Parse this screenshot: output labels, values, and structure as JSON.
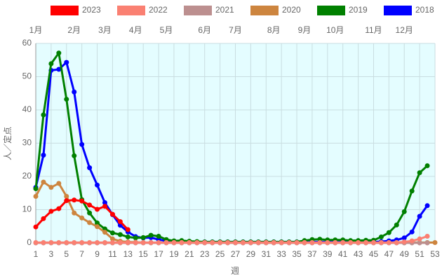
{
  "chart_data": {
    "type": "line",
    "y_label": "人／定点",
    "x_label": "週",
    "x": [
      1,
      2,
      3,
      4,
      5,
      6,
      7,
      8,
      9,
      10,
      11,
      12,
      13,
      14,
      15,
      16,
      17,
      18,
      19,
      20,
      21,
      22,
      23,
      24,
      25,
      26,
      27,
      28,
      29,
      30,
      31,
      32,
      33,
      34,
      35,
      36,
      37,
      38,
      39,
      40,
      41,
      42,
      43,
      44,
      45,
      46,
      47,
      48,
      49,
      50,
      51,
      52,
      53
    ],
    "xlim": [
      1,
      53
    ],
    "xticks": [
      1,
      3,
      5,
      7,
      9,
      11,
      13,
      15,
      17,
      19,
      21,
      23,
      25,
      27,
      29,
      31,
      33,
      35,
      37,
      39,
      41,
      43,
      45,
      47,
      49,
      51,
      53
    ],
    "x2ticks": [
      {
        "value": 1,
        "label": "1月"
      },
      {
        "value": 6,
        "label": "2月"
      },
      {
        "value": 10,
        "label": "3月"
      },
      {
        "value": 14,
        "label": "4月"
      },
      {
        "value": 18,
        "label": "5月"
      },
      {
        "value": 23,
        "label": "6月"
      },
      {
        "value": 27,
        "label": "7月"
      },
      {
        "value": 32,
        "label": "8月"
      },
      {
        "value": 36,
        "label": "9月"
      },
      {
        "value": 40,
        "label": "10月"
      },
      {
        "value": 45,
        "label": "11月"
      },
      {
        "value": 49,
        "label": "12月"
      }
    ],
    "ylim": [
      0,
      60
    ],
    "yticks": [
      0,
      10,
      20,
      30,
      40,
      50,
      60
    ],
    "grid": true,
    "series": [
      {
        "name": "2023",
        "color": "#ff0000",
        "values": [
          4.8,
          7.3,
          9.5,
          10.3,
          12.7,
          12.9,
          12.6,
          11.4,
          10.1,
          11.0,
          8.6,
          6.4,
          4.0,
          null,
          null,
          null,
          null,
          null,
          null,
          null,
          null,
          null,
          null,
          null,
          null,
          null,
          null,
          null,
          null,
          null,
          null,
          null,
          null,
          null,
          null,
          null,
          null,
          null,
          null,
          null,
          null,
          null,
          null,
          null,
          null,
          null,
          null,
          null,
          null,
          null,
          null,
          null,
          null
        ]
      },
      {
        "name": "2022",
        "color": "#fa8072",
        "values": [
          0.1,
          0.1,
          0.1,
          0.1,
          0.1,
          0.1,
          0.1,
          0.1,
          0.1,
          0.1,
          0.1,
          0.1,
          0.1,
          0.1,
          0.1,
          0.1,
          0.1,
          0.1,
          0.1,
          0.1,
          0.1,
          0.1,
          0.1,
          0.1,
          0.1,
          0.1,
          0.1,
          0.1,
          0.1,
          0.1,
          0.1,
          0.1,
          0.1,
          0.1,
          0.1,
          0.1,
          0.1,
          0.1,
          0.1,
          0.1,
          0.1,
          0.1,
          0.1,
          0.1,
          0.1,
          0.1,
          0.1,
          0.1,
          0.3,
          0.6,
          1.2,
          2.0,
          null
        ]
      },
      {
        "name": "2021",
        "color": "#bc8f8f",
        "values": [
          0,
          0,
          0,
          0,
          0,
          0,
          0,
          0,
          0,
          0,
          0,
          0,
          0,
          0,
          0,
          0,
          0,
          0,
          0,
          0,
          0,
          0,
          0,
          0,
          0,
          0,
          0,
          0,
          0,
          0,
          0,
          0,
          0,
          0,
          0,
          0,
          0,
          0,
          0,
          0,
          0,
          0,
          0,
          0,
          0,
          0,
          0,
          0,
          0,
          0,
          0,
          0,
          null
        ]
      },
      {
        "name": "2020",
        "color": "#cd853f",
        "values": [
          14.0,
          18.3,
          16.7,
          17.9,
          14.0,
          9.0,
          7.5,
          6.1,
          4.9,
          3.2,
          1.2,
          0.5,
          0.3,
          0.2,
          0.1,
          0.1,
          0.1,
          0.1,
          0.1,
          0.1,
          0.1,
          0.1,
          0.1,
          0.1,
          0.1,
          0.1,
          0.1,
          0.1,
          0.1,
          0.1,
          0.1,
          0.1,
          0.1,
          0.1,
          0.1,
          0.1,
          0.1,
          0.1,
          0.1,
          0.1,
          0.1,
          0.1,
          0.1,
          0.1,
          0.1,
          0.1,
          0.1,
          0.1,
          0.1,
          0.1,
          0.1,
          0.1,
          0.1
        ]
      },
      {
        "name": "2019",
        "color": "#008000",
        "values": [
          16.3,
          38.5,
          53.9,
          57.1,
          43.2,
          26.2,
          13.0,
          9.0,
          6.0,
          4.2,
          3.0,
          2.5,
          1.8,
          1.5,
          1.6,
          2.3,
          2.0,
          1.0,
          0.6,
          0.7,
          0.5,
          0.4,
          0.3,
          0.3,
          0.3,
          0.3,
          0.3,
          0.3,
          0.3,
          0.3,
          0.3,
          0.3,
          0.3,
          0.3,
          0.3,
          0.7,
          1.0,
          1.1,
          0.9,
          0.9,
          0.9,
          0.7,
          0.7,
          0.8,
          0.8,
          1.8,
          3.1,
          5.4,
          9.4,
          15.6,
          21.1,
          23.2,
          null
        ]
      },
      {
        "name": "2018",
        "color": "#0000ff",
        "values": [
          16.7,
          26.4,
          51.9,
          52.2,
          54.3,
          45.4,
          29.6,
          22.6,
          17.4,
          12.1,
          8.5,
          5.3,
          3.3,
          1.9,
          1.5,
          1.6,
          1.0,
          0.6,
          0.5,
          0.5,
          0.4,
          0.3,
          0.3,
          0.3,
          0.3,
          0.3,
          0.3,
          0.3,
          0.3,
          0.3,
          0.3,
          0.3,
          0.3,
          0.3,
          0.3,
          0.3,
          0.3,
          0.3,
          0.3,
          0.3,
          0.3,
          0.3,
          0.3,
          0.3,
          0.3,
          0.4,
          0.6,
          0.9,
          1.5,
          3.3,
          8.0,
          11.2,
          null
        ]
      }
    ]
  }
}
